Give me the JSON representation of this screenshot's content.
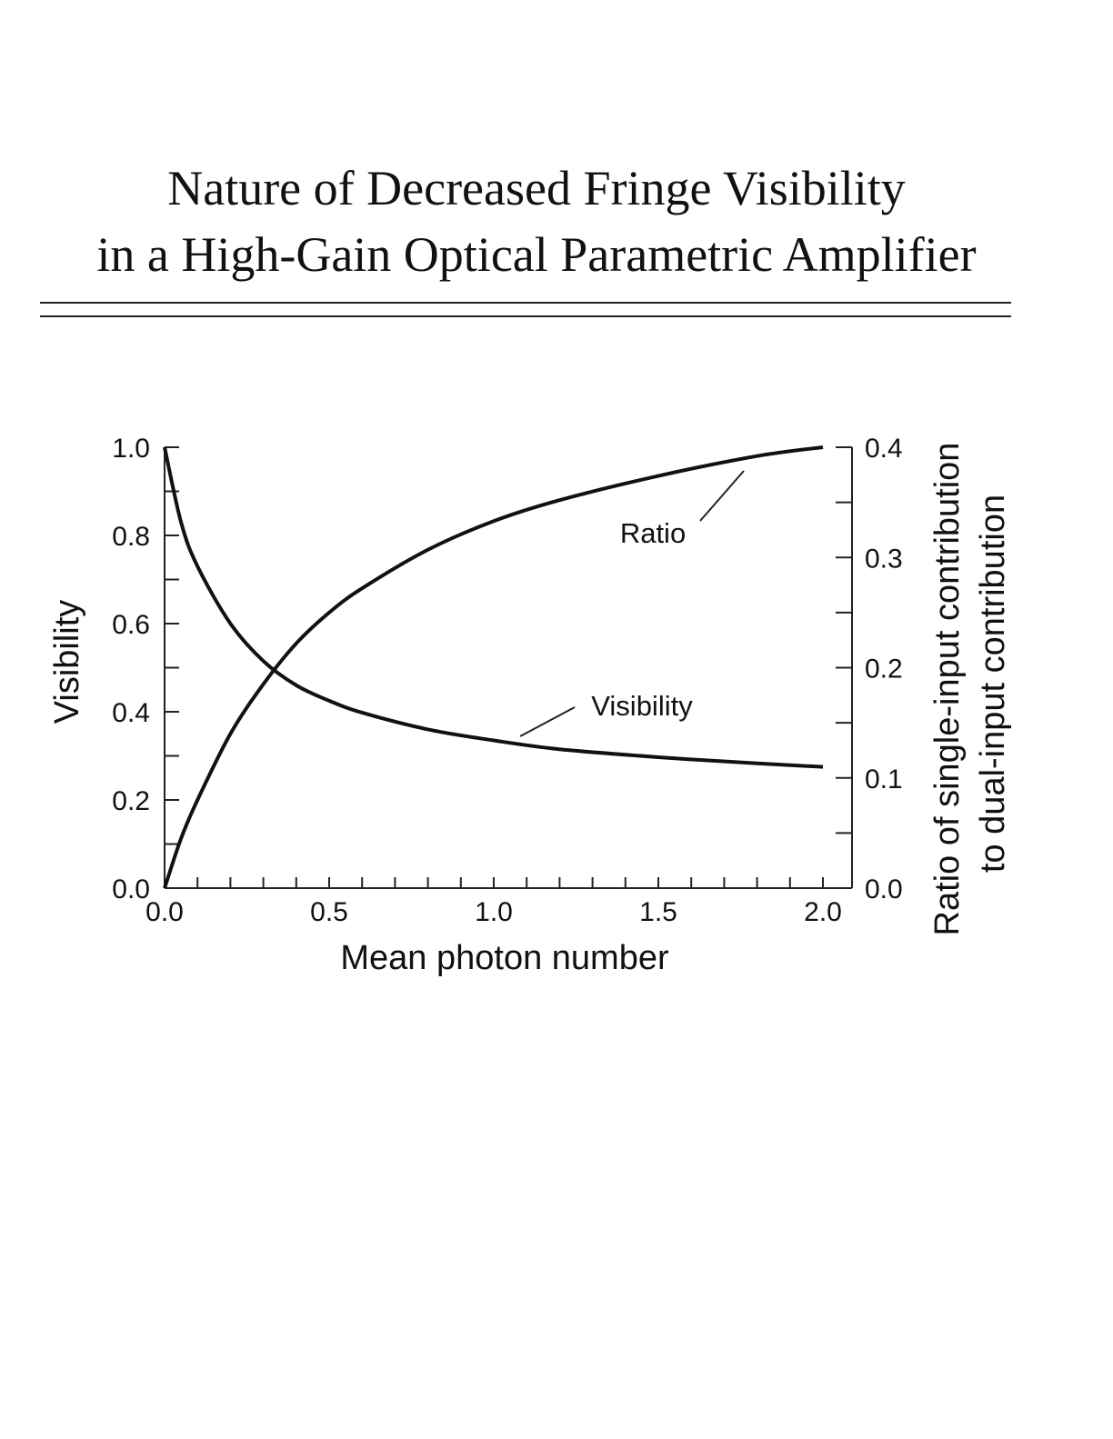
{
  "header": {
    "title_line1": "Nature of Decreased Fringe Visibility",
    "title_line2": "in a High-Gain Optical Parametric Amplifier"
  },
  "chart_data": {
    "type": "line",
    "title": "Nature of Decreased Fringe Visibility in a High-Gain Optical Parametric Amplifier",
    "xlabel": "Mean photon number",
    "ylabel_left": "Visibility",
    "ylabel_right_line1": "Ratio of single-input contribution",
    "ylabel_right_line2": "to dual-input contribution",
    "xlim": [
      0,
      2.0
    ],
    "ylim_left": [
      0,
      1.0
    ],
    "ylim_right": [
      0,
      0.4
    ],
    "x_ticks": [
      "0.0",
      "0.5",
      "1.0",
      "1.5",
      "2.0"
    ],
    "y_left_ticks": [
      "0.0",
      "0.2",
      "0.4",
      "0.6",
      "0.8",
      "1.0"
    ],
    "y_right_ticks": [
      "0.0",
      "0.1",
      "0.2",
      "0.3",
      "0.4"
    ],
    "grid": false,
    "series": [
      {
        "name": "Visibility",
        "axis": "left",
        "x": [
          0,
          0.05,
          0.1,
          0.2,
          0.3,
          0.4,
          0.5,
          0.6,
          0.8,
          1.0,
          1.2,
          1.5,
          1.8,
          2.0
        ],
        "values": [
          1.0,
          0.83,
          0.73,
          0.6,
          0.515,
          0.46,
          0.425,
          0.398,
          0.36,
          0.335,
          0.315,
          0.297,
          0.283,
          0.275
        ]
      },
      {
        "name": "Ratio",
        "axis": "right",
        "x": [
          0,
          0.05,
          0.1,
          0.2,
          0.3,
          0.4,
          0.5,
          0.6,
          0.8,
          1.0,
          1.2,
          1.5,
          1.8,
          2.0
        ],
        "values": [
          0.0,
          0.045,
          0.08,
          0.14,
          0.185,
          0.222,
          0.25,
          0.272,
          0.307,
          0.333,
          0.352,
          0.374,
          0.392,
          0.4
        ]
      }
    ],
    "annotations": [
      {
        "text": "Ratio",
        "series": "Ratio"
      },
      {
        "text": "Visibility",
        "series": "Visibility"
      }
    ]
  }
}
